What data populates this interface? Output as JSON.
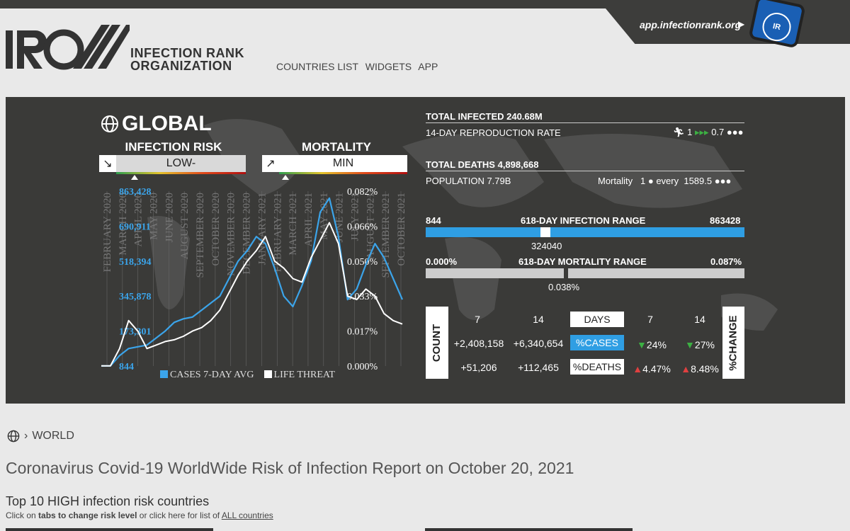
{
  "header": {
    "app_link": "app.infectionrank.org",
    "logo_letters": "IR",
    "org_line1": "INFECTION RANK",
    "org_line2": "ORGANIZATION",
    "phone_badge": "IR"
  },
  "nav": {
    "items": [
      "COUNTRIES LIST",
      "WIDGETS",
      "APP"
    ]
  },
  "panel": {
    "region": "GLOBAL",
    "infection_risk": {
      "label": "INFECTION RISK",
      "value": "LOW-",
      "level": 0.14
    },
    "mortality": {
      "label": "MORTALITY",
      "value": "MIN",
      "level": 0.05
    },
    "stats": {
      "total_infected": "TOTAL INFECTED 240.68M",
      "repro_label": "14-DAY REPRODUCTION RATE",
      "repro_one": "1",
      "repro_value": "0.7",
      "total_deaths": "TOTAL DEATHS 4,898,668",
      "population": "POPULATION 7.79B",
      "mortality_label": "Mortality",
      "mortality_one": "1",
      "mortality_every": "every",
      "mortality_value": "1589.5"
    },
    "infection_range": {
      "title": "618-DAY INFECTION RANGE",
      "min": "844",
      "max": "863428",
      "current": "324040",
      "current_fraction": 0.375
    },
    "mortality_range": {
      "title": "618-DAY MORTALITY RANGE",
      "min": "0.000%",
      "max": "0.087%",
      "current": "0.038%",
      "current_fraction": 0.44
    },
    "table": {
      "count_label": "COUNT",
      "change_label": "%CHANGE",
      "days_label": "DAYS",
      "col_7": "7",
      "col_14": "14",
      "col_7b": "7",
      "col_14b": "14",
      "cases_label": "%CASES",
      "deaths_label": "%DEATHS",
      "cases_7": "+2,408,158",
      "cases_14": "+6,340,654",
      "deaths_7": "+51,206",
      "deaths_14": "+112,465",
      "cases_change_7": "24%",
      "cases_change_14": "27%",
      "deaths_change_7": "4.47%",
      "deaths_change_14": "8.48%"
    }
  },
  "chart_data": {
    "type": "line",
    "title": "",
    "x_tick_labels": [
      "FEBRUARY 2020",
      "MARCH 2020",
      "APRIL 2020",
      "MAY 2020",
      "JUNE 2020",
      "AUGUST 2020",
      "SEPTEMBER 2020",
      "OCTOBER 2020",
      "NOVEMBER 2020",
      "DECEMBER 2020",
      "JANUARY 2021",
      "FEBRUARY 2021",
      "MARCH 2021",
      "APRIL 2021",
      "MAY 2021",
      "JUNE 2021",
      "JULY 2021",
      "AUGUST 2021",
      "SEPTEMBER 2021",
      "OCTOBER 2021"
    ],
    "y_left_ticks": [
      "844",
      "173,301",
      "345,878",
      "518,394",
      "690,911",
      "863,428"
    ],
    "y_right_ticks": [
      "0.000%",
      "0.017%",
      "0.033%",
      "0.050%",
      "0.066%",
      "0.082%"
    ],
    "series": [
      {
        "name": "CASES 7-DAY AVG",
        "color": "#3ba4ea",
        "values": [
          0.001,
          0.001,
          0.06,
          0.1,
          0.11,
          0.12,
          0.16,
          0.2,
          0.25,
          0.27,
          0.28,
          0.32,
          0.36,
          0.4,
          0.5,
          0.6,
          0.66,
          0.74,
          0.7,
          0.56,
          0.4,
          0.34,
          0.46,
          0.6,
          0.88,
          0.96,
          0.74,
          0.38,
          0.44,
          0.58,
          0.7,
          0.62,
          0.5,
          0.38
        ]
      },
      {
        "name": "LIFE THREAT",
        "color": "#ffffff",
        "values": [
          0.001,
          0.001,
          0.1,
          0.26,
          0.2,
          0.1,
          0.12,
          0.14,
          0.15,
          0.17,
          0.2,
          0.22,
          0.26,
          0.32,
          0.42,
          0.52,
          0.6,
          0.66,
          0.74,
          0.6,
          0.56,
          0.5,
          0.48,
          0.62,
          0.72,
          0.82,
          0.7,
          0.4,
          0.38,
          0.44,
          0.4,
          0.3,
          0.26,
          0.24
        ]
      }
    ]
  }
}
